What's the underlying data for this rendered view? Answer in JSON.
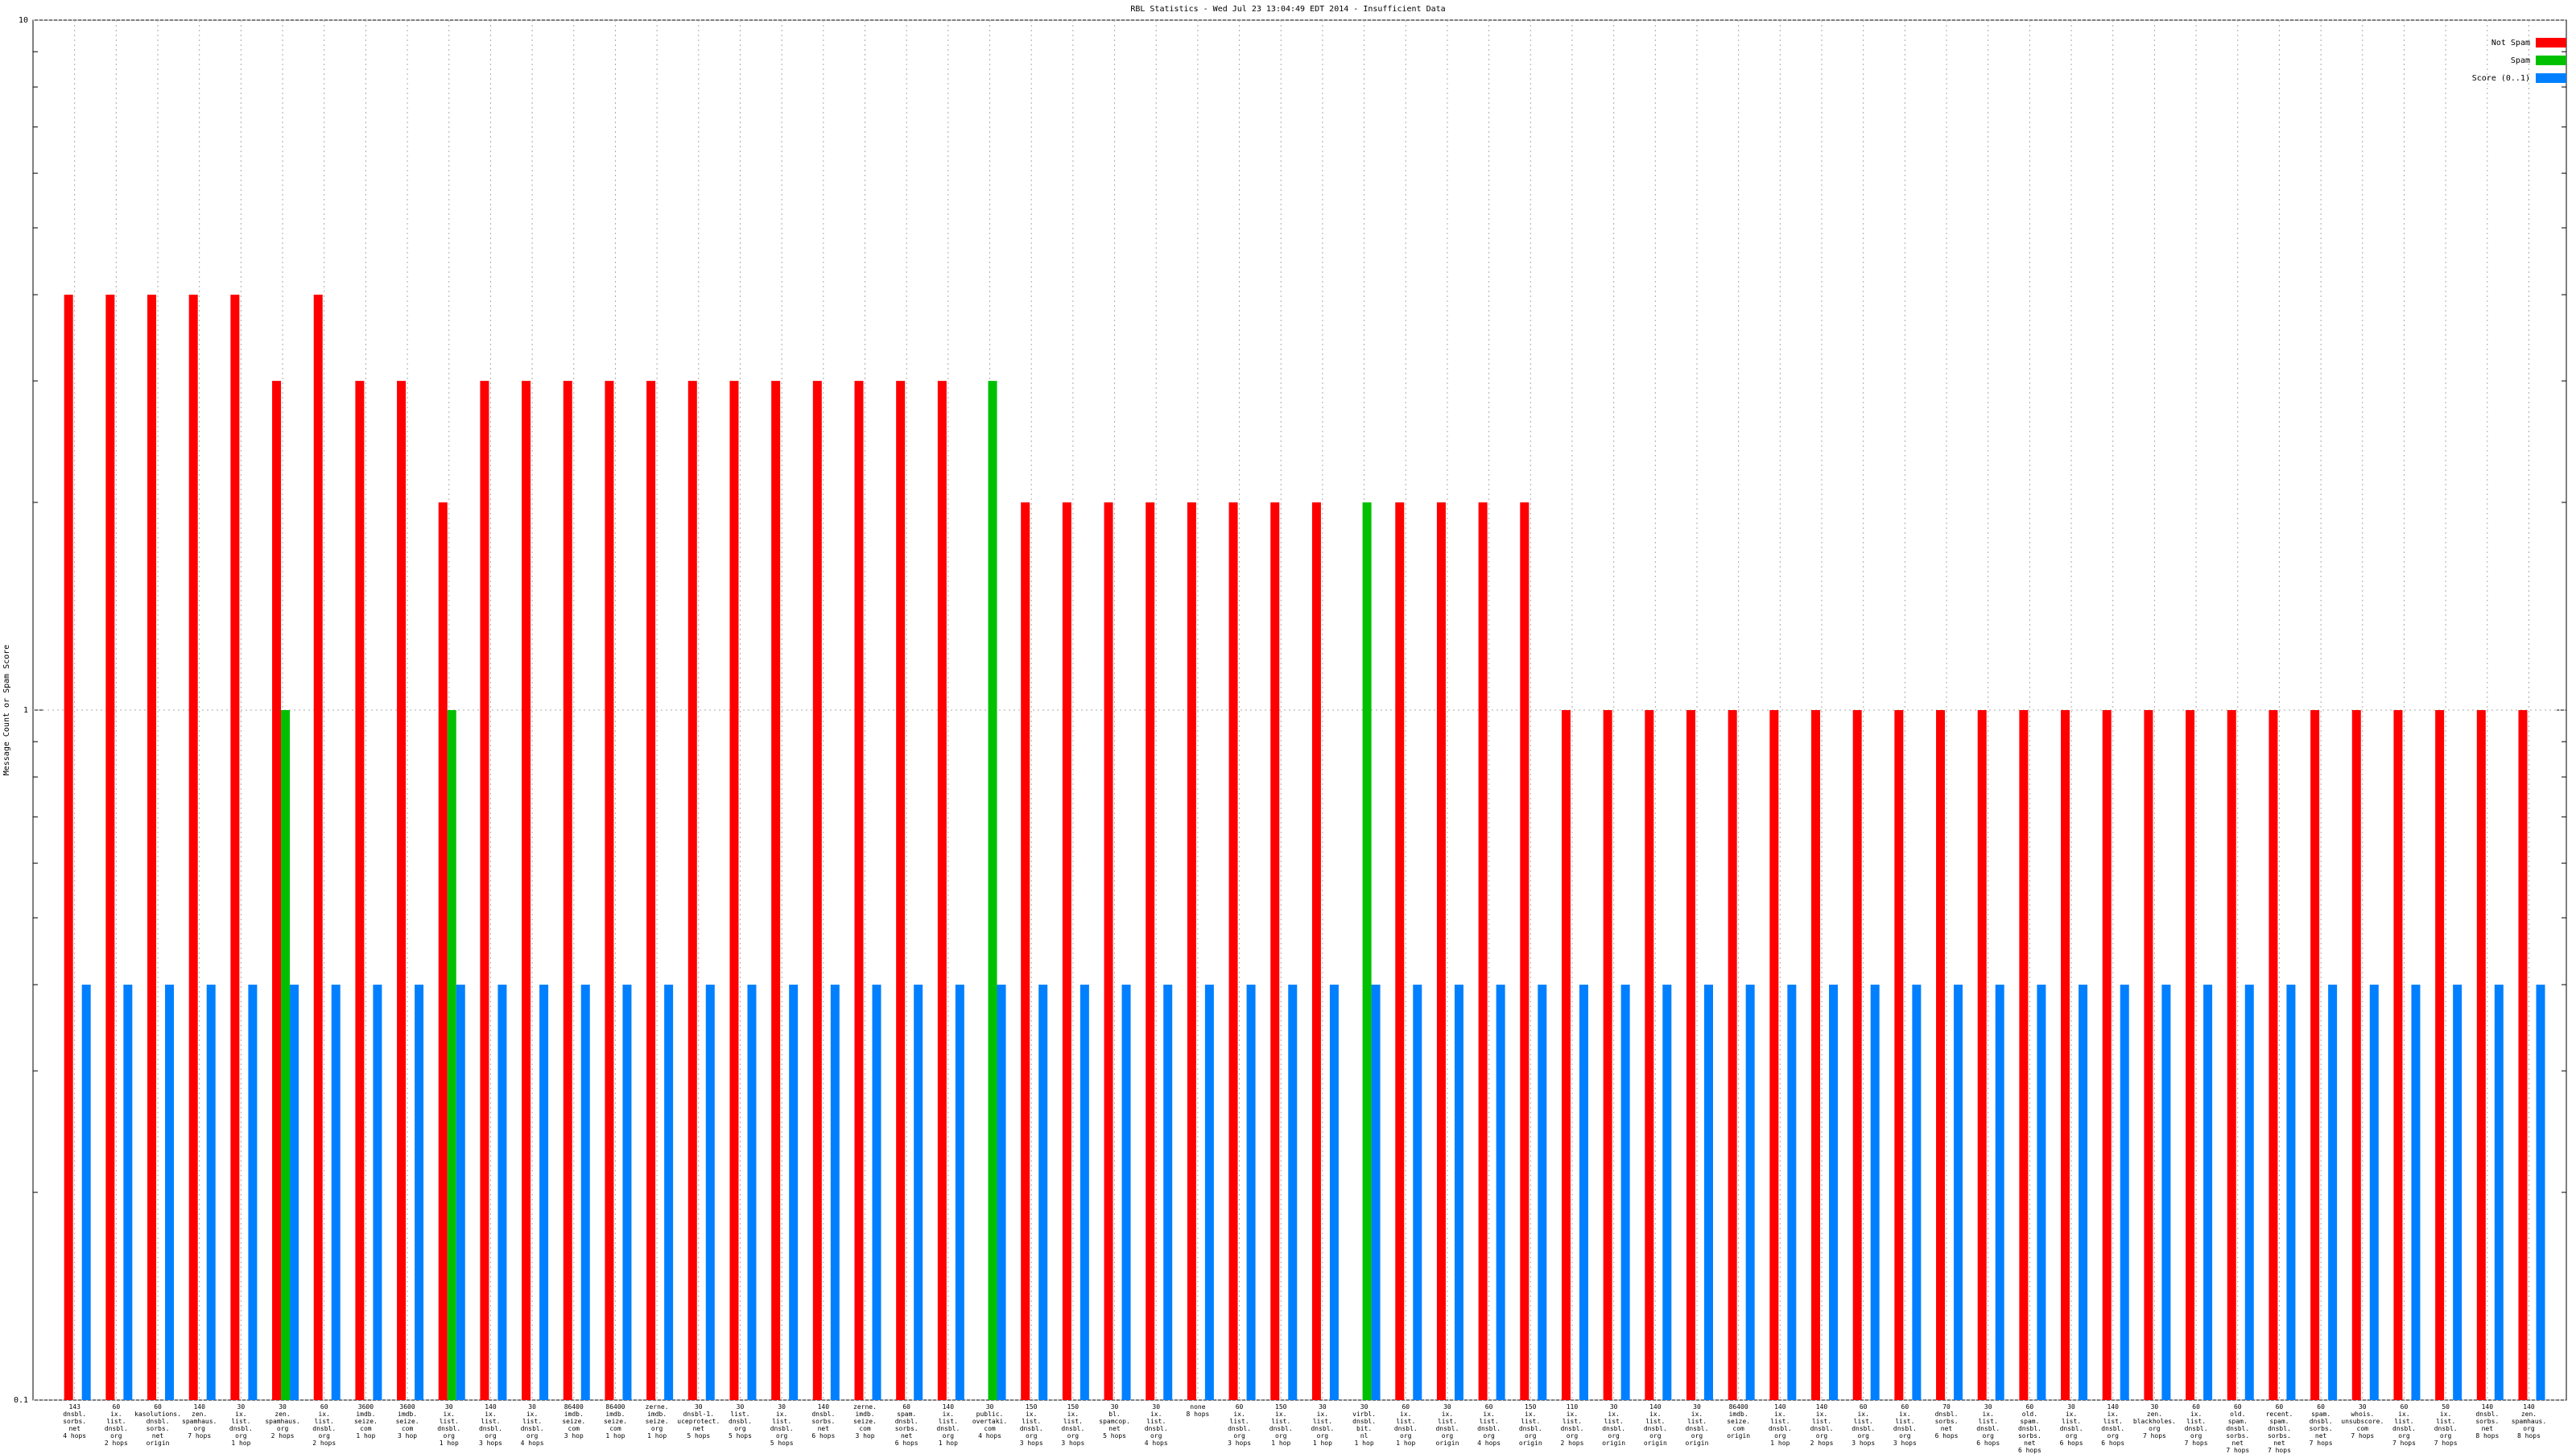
{
  "chart_data": {
    "type": "bar",
    "title": "RBL Statistics - Wed Jul 23 13:04:49 EDT 2014 - Insufficient Data",
    "y_label": "Message Count or Spam Score",
    "log_scale_y": true,
    "grid": true,
    "legend": "top-right",
    "ylim": [
      0.1,
      10
    ],
    "yticks": [
      0.1,
      1,
      10
    ],
    "y_minor_ticks": [
      0.2,
      0.3,
      0.4,
      0.5,
      0.6,
      0.7,
      0.8,
      0.9,
      2,
      3,
      4,
      5,
      6,
      7,
      8,
      9
    ],
    "categories": [
      "143\ndnsbl.\nsorbs.\nnet\n4 hops",
      "60\nix.\nlist.\ndnsbl.\norg\n2 hops",
      "60\nkasolutions.\ndnsbl.\nsorbs.\nnet\norigin",
      "140\nzen.\nspamhaus.\norg\n7 hops",
      "30\nix.\nlist.\ndnsbl.\norg\n1 hop",
      "30\nzen.\nspamhaus.\norg\n2 hops",
      "60\nix.\nlist.\ndnsbl.\norg\n2 hops",
      "3600\nimdb.\nseize.\ncom\n1 hop",
      "3600\nimdb.\nseize.\ncom\n3 hop",
      "30\nix.\nlist.\ndnsbl.\norg\n1 hop",
      "140\nix.\nlist.\ndnsbl.\norg\n3 hops",
      "30\nix.\nlist.\ndnsbl.\norg\n4 hops",
      "86400\nimdb.\nseize.\ncom\n3 hop",
      "86400\nimdb.\nseize.\ncom\n1 hop",
      "zerne.\nimdb.\nseize.\norg\n1 hop",
      "30\ndnsbl-1.\nuceprotect.\nnet\n5 hops",
      "30\nlist.\ndnsbl.\norg\n5 hops",
      "30\nix.\nlist.\ndnsbl.\norg\n5 hops",
      "140\ndnsbl.\nsorbs.\nnet\n6 hops",
      "zerne.\nimdb.\nseize.\ncom\n3 hop",
      "60\nspam.\ndnsbl.\nsorbs.\nnet\n6 hops",
      "140\nix.\nlist.\ndnsbl.\norg\n1 hop",
      "30\npublic.\novertaki.\ncom\n4 hops",
      "150\nix.\nlist.\ndnsbl.\norg\n3 hops",
      "150\nix.\nlist.\ndnsbl.\norg\n3 hops",
      "30\nbl.\nspamcop.\nnet\n5 hops",
      "30\nix.\nlist.\ndnsbl.\norg\n4 hops",
      "none\n8 hops",
      "60\nix.\nlist.\ndnsbl.\norg\n3 hops",
      "150\nix.\nlist.\ndnsbl.\norg\n1 hop",
      "30\nix.\nlist.\ndnsbl.\norg\n1 hop",
      "30\nvirbl.\ndnsbl.\nbit.\nnl\n1 hop",
      "60\nix.\nlist.\ndnsbl.\norg\n1 hop",
      "30\nix.\nlist.\ndnsbl.\norg\norigin",
      "60\nix.\nlist.\ndnsbl.\norg\n4 hops",
      "150\nix.\nlist.\ndnsbl.\norg\norigin",
      "110\nix.\nlist.\ndnsbl.\norg\n2 hops",
      "30\nix.\nlist.\ndnsbl.\norg\norigin",
      "140\nix.\nlist.\ndnsbl.\norg\norigin",
      "30\nix.\nlist.\ndnsbl.\norg\norigin",
      "86400\nimdb.\nseize.\ncom\norigin",
      "140\nix.\nlist.\ndnsbl.\norg\n1 hop",
      "140\nix.\nlist.\ndnsbl.\norg\n2 hops",
      "60\nix.\nlist.\ndnsbl.\norg\n3 hops",
      "60\nix.\nlist.\ndnsbl.\norg\n3 hops",
      "70\ndnsbl.\nsorbs.\nnet\n6 hops",
      "30\nix.\nlist.\ndnsbl.\norg\n6 hops",
      "60\nold.\nspam.\ndnsbl.\nsorbs.\nnet\n6 hops",
      "30\nix.\nlist.\ndnsbl.\norg\n6 hops",
      "140\nix.\nlist.\ndnsbl.\norg\n6 hops",
      "30\nzen.\nblackholes.\norg\n7 hops",
      "60\nix.\nlist.\ndnsbl.\norg\n7 hops",
      "60\nold.\nspam.\ndnsbl.\nsorbs.\nnet\n7 hops",
      "60\nrecent.\nspam.\ndnsbl.\nsorbs.\nnet\n7 hops",
      "60\nspam.\ndnsbl.\nsorbs.\nnet\n7 hops",
      "30\nwhois.\nunsubscore.\ncom\n7 hops",
      "60\nix.\nlist.\ndnsbl.\norg\n7 hops",
      "50\nix.\nlist.\ndnsbl.\norg\n7 hops",
      "140\ndnsbl.\nsorbs.\nnet\n8 hops",
      "140\nzen.\nspamhaus.\norg\n8 hops"
    ],
    "series": [
      {
        "name": "Not Spam",
        "color": "#ff0000",
        "values": [
          4,
          4,
          4,
          4,
          4,
          3,
          4,
          3,
          3,
          2,
          3,
          3,
          3,
          3,
          3,
          3,
          3,
          3,
          3,
          3,
          3,
          3,
          null,
          2,
          2,
          2,
          2,
          2,
          2,
          2,
          2,
          null,
          2,
          2,
          2,
          2,
          1,
          1,
          1,
          1,
          1,
          1,
          1,
          1,
          1,
          1,
          1,
          1,
          1,
          1,
          1,
          1,
          1,
          1,
          1,
          1,
          1,
          1,
          1,
          1
        ]
      },
      {
        "name": "Spam",
        "color": "#00c000",
        "values": [
          null,
          null,
          null,
          null,
          null,
          1,
          null,
          null,
          null,
          1,
          null,
          null,
          null,
          null,
          null,
          null,
          null,
          null,
          null,
          null,
          null,
          null,
          3,
          null,
          null,
          null,
          null,
          null,
          null,
          null,
          null,
          2,
          null,
          null,
          null,
          null,
          null,
          null,
          null,
          null,
          null,
          null,
          null,
          null,
          null,
          null,
          null,
          null,
          null,
          null,
          null,
          null,
          null,
          null,
          null,
          null,
          null,
          null,
          null,
          null
        ]
      },
      {
        "name": "Score (0..1)",
        "color": "#0080ff",
        "values": [
          0.4,
          0.4,
          0.4,
          0.4,
          0.4,
          0.4,
          0.4,
          0.4,
          0.4,
          0.4,
          0.4,
          0.4,
          0.4,
          0.4,
          0.4,
          0.4,
          0.4,
          0.4,
          0.4,
          0.4,
          0.4,
          0.4,
          0.4,
          0.4,
          0.4,
          0.4,
          0.4,
          0.4,
          0.4,
          0.4,
          0.4,
          0.4,
          0.4,
          0.4,
          0.4,
          0.4,
          0.4,
          0.4,
          0.4,
          0.4,
          0.4,
          0.4,
          0.4,
          0.4,
          0.4,
          0.4,
          0.4,
          0.4,
          0.4,
          0.4,
          0.4,
          0.4,
          0.4,
          0.4,
          0.4,
          0.4,
          0.4,
          0.4,
          0.4,
          0.4
        ]
      }
    ]
  }
}
